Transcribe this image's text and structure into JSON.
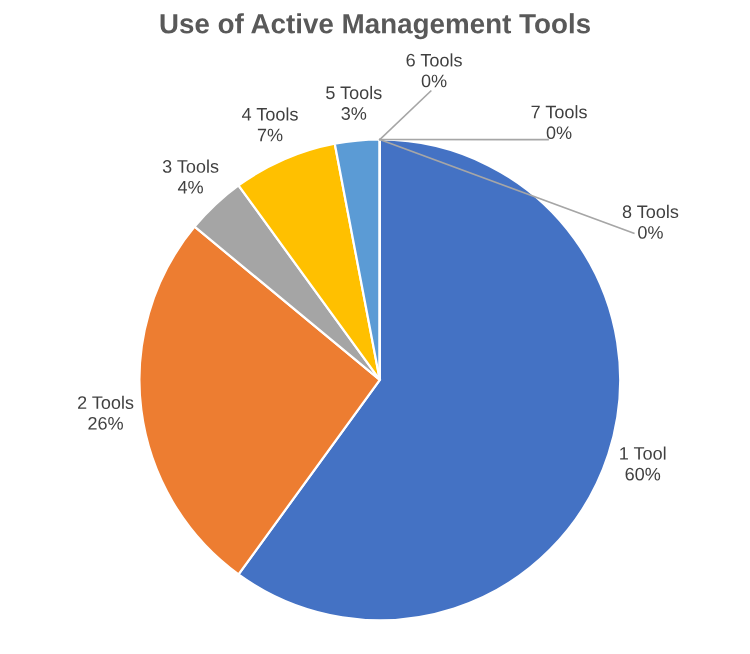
{
  "chart_data": {
    "type": "pie",
    "title": "Use of Active Management Tools",
    "categories": [
      "1 Tool",
      "2 Tools",
      "3 Tools",
      "4 Tools",
      "5 Tools",
      "6 Tools",
      "7 Tools",
      "8 Tools"
    ],
    "values": [
      60,
      26,
      4,
      7,
      3,
      0,
      0,
      0
    ],
    "value_labels": [
      "60%",
      "26%",
      "4%",
      "7%",
      "3%",
      "0%",
      "0%",
      "0%"
    ],
    "colors": [
      "#4472c4",
      "#ed7d31",
      "#a5a5a5",
      "#ffc000",
      "#5b9bd5",
      "#70ad47",
      "#264478",
      "#9e480e"
    ]
  }
}
